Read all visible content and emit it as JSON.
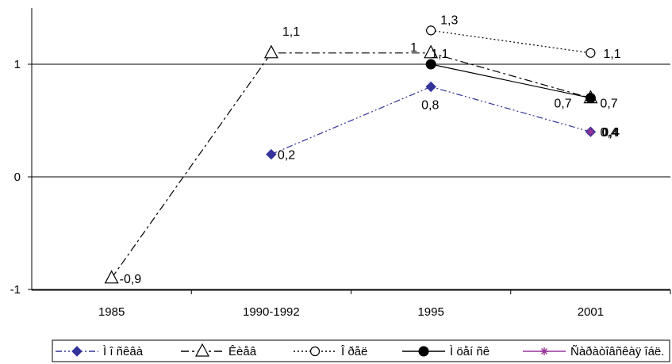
{
  "chart_data": {
    "type": "line",
    "categories": [
      "1985",
      "1990-1992",
      "1995",
      "2001"
    ],
    "y_ticks": [
      "-1",
      "0",
      "1"
    ],
    "ylim": [
      -1,
      1.5
    ],
    "grid": "horizontal at 1, 0 and -1",
    "legend_placement": "bottom",
    "series": [
      {
        "name": "Ì î ñêâà",
        "values": [
          null,
          0.2,
          0.8,
          0.4
        ],
        "labels": [
          null,
          "0,2",
          "0,8",
          "0,4"
        ],
        "color": "#333399",
        "marker": "diamond",
        "dash": "dash-dot-dot"
      },
      {
        "name": "Êèåâ",
        "values": [
          -0.9,
          1.1,
          1.1,
          0.7
        ],
        "labels": [
          "-0,9",
          "1,1",
          "1,1",
          ""
        ],
        "color": "#000000",
        "marker": "triangle",
        "dash": "dash-dot"
      },
      {
        "name": "Î ðåë",
        "values": [
          null,
          null,
          1.3,
          1.1
        ],
        "labels": [
          null,
          null,
          "1,3",
          "1,1"
        ],
        "color": "#000000",
        "marker": "circle-open",
        "dash": "dotted"
      },
      {
        "name": "Ì öåí ñê",
        "values": [
          null,
          null,
          1.0,
          0.7
        ],
        "labels": [
          null,
          null,
          "1",
          "0,7"
        ],
        "color": "#000000",
        "marker": "circle-filled",
        "dash": "solid"
      },
      {
        "name": "Ñàðàòîâñêàÿ îáë.",
        "values": [
          null,
          null,
          null,
          0.4
        ],
        "labels": [
          null,
          null,
          null,
          "0,4"
        ],
        "color": "#993399",
        "marker": "asterisk",
        "dash": "solid"
      }
    ],
    "extra_labels": [
      {
        "category": "2001",
        "value": 0.7,
        "text": "0,7"
      }
    ]
  }
}
